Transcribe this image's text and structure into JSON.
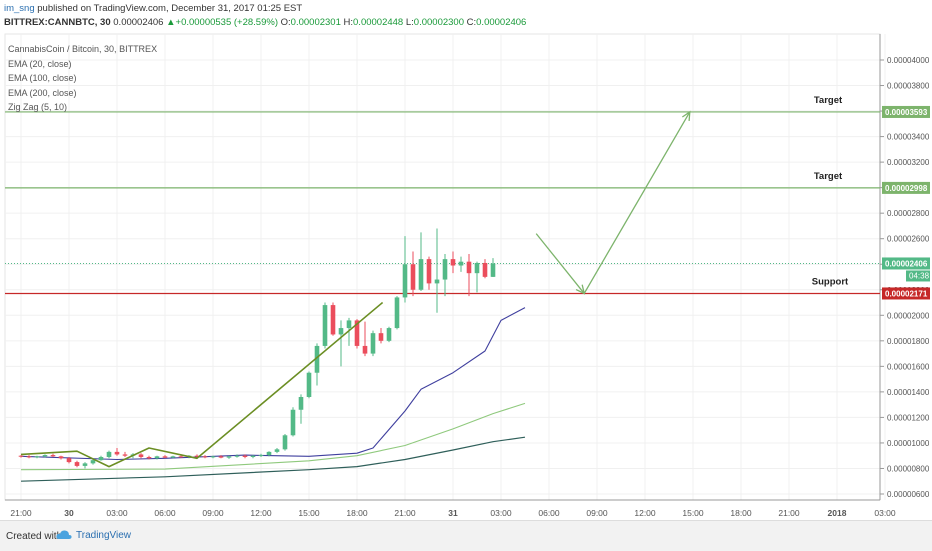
{
  "header": {
    "author": "im_sng",
    "published_text": "published on TradingView.com, December 31, 2017 01:25 EST",
    "symbol": "BITTREX:CANNBTC, 30",
    "last": "0.00002406",
    "change_arrow": "▲",
    "change": "+0.00000535 (+28.59%)",
    "o_label": "O:",
    "o": "0.00002301",
    "h_label": "H:",
    "h": "0.00002448",
    "l_label": "L:",
    "l": "0.00002300",
    "c_label": "C:",
    "c": "0.00002406"
  },
  "legend": {
    "title": "CannabisCoin / Bitcoin, 30, BITTREX",
    "ema20": "EMA (20, close)",
    "ema100": "EMA (100, close)",
    "ema200": "EMA (200, close)",
    "zigzag": "Zig Zag (5, 10)"
  },
  "footer": {
    "created_with": "Created with",
    "brand": "TradingView"
  },
  "colors": {
    "up": "#53b987",
    "down": "#eb4d5c",
    "ema20": "#3f3f9e",
    "ema100": "#8fc97d",
    "ema200": "#2f5f5a",
    "zigzag": "#6b8e23",
    "target_line": "#7db46c",
    "support_line": "#c62828",
    "arrow": "#7db46c"
  },
  "chart_data": {
    "type": "candlestick",
    "y_range": [
      5.8e-06,
      4.2e-06
    ],
    "y_ticks": [
      "0.00000600",
      "0.00000800",
      "0.00001000",
      "0.00001200",
      "0.00001400",
      "0.00001600",
      "0.00001800",
      "0.00002000",
      "0.00002200",
      "0.00002400",
      "0.00002600",
      "0.00002800",
      "0.00003000",
      "0.00003200",
      "0.00003400",
      "0.00003600",
      "0.00003800",
      "0.00004000"
    ],
    "x_ticks": [
      "21:00",
      "30",
      "03:00",
      "06:00",
      "09:00",
      "12:00",
      "15:00",
      "18:00",
      "21:00",
      "31",
      "03:00",
      "06:00",
      "09:00",
      "12:00",
      "15:00",
      "18:00",
      "21:00",
      "2018",
      "03:00"
    ],
    "x_tick_times": [
      0,
      3,
      6,
      9,
      12,
      15,
      18,
      21,
      24,
      27,
      30,
      33,
      36,
      39,
      42,
      45,
      48,
      51,
      54
    ],
    "levels": [
      {
        "label": "Target",
        "value": "0.00003593"
      },
      {
        "label": "Target",
        "value": "0.00002998"
      },
      {
        "label": "Support",
        "value": "0.00002171"
      }
    ],
    "last_price_tag": "0.00002406",
    "countdown": "04:38",
    "candles": [
      [
        9e-06,
        9.05e-06,
        8.85e-06,
        8.95e-06
      ],
      [
        8.95e-06,
        9.05e-06,
        8.8e-06,
        8.9e-06
      ],
      [
        8.9e-06,
        9e-06,
        8.8e-06,
        8.95e-06
      ],
      [
        8.95e-06,
        9.1e-06,
        8.85e-06,
        9.05e-06
      ],
      [
        9.05e-06,
        9.15e-06,
        8.9e-06,
        8.95e-06
      ],
      [
        8.95e-06,
        9e-06,
        8.7e-06,
        8.8e-06
      ],
      [
        8.8e-06,
        8.9e-06,
        8.4e-06,
        8.5e-06
      ],
      [
        8.5e-06,
        8.6e-06,
        8.1e-06,
        8.2e-06
      ],
      [
        8.2e-06,
        8.5e-06,
        8e-06,
        8.4e-06
      ],
      [
        8.4e-06,
        8.7e-06,
        8.3e-06,
        8.65e-06
      ],
      [
        8.65e-06,
        9e-06,
        8.6e-06,
        8.9e-06
      ],
      [
        8.9e-06,
        9.4e-06,
        8.8e-06,
        9.3e-06
      ],
      [
        9.3e-06,
        9.6e-06,
        9e-06,
        9.1e-06
      ],
      [
        9.1e-06,
        9.3e-06,
        8.9e-06,
        9e-06
      ],
      [
        9e-06,
        9.2e-06,
        8.8e-06,
        9.1e-06
      ],
      [
        9.1e-06,
        9.2e-06,
        8.8e-06,
        8.9e-06
      ],
      [
        8.9e-06,
        9e-06,
        8.7e-06,
        8.8e-06
      ],
      [
        8.8e-06,
        9e-06,
        8.7e-06,
        8.95e-06
      ],
      [
        8.95e-06,
        9.05e-06,
        8.8e-06,
        8.85e-06
      ],
      [
        8.85e-06,
        9e-06,
        8.8e-06,
        8.95e-06
      ],
      [
        8.95e-06,
        9.1e-06,
        8.85e-06,
        8.9e-06
      ],
      [
        8.9e-06,
        9.05e-06,
        8.8e-06,
        9e-06
      ],
      [
        9e-06,
        9.1e-06,
        8.85e-06,
        8.95e-06
      ],
      [
        8.95e-06,
        9.05e-06,
        8.8e-06,
        8.9e-06
      ],
      [
        8.9e-06,
        9e-06,
        8.8e-06,
        8.95e-06
      ],
      [
        8.95e-06,
        9.05e-06,
        8.8e-06,
        8.85e-06
      ],
      [
        8.85e-06,
        9e-06,
        8.75e-06,
        8.95e-06
      ],
      [
        8.95e-06,
        9.1e-06,
        8.85e-06,
        9e-06
      ],
      [
        9e-06,
        9.1e-06,
        8.8e-06,
        8.9e-06
      ],
      [
        8.9e-06,
        9.05e-06,
        8.8e-06,
        9e-06
      ],
      [
        9e-06,
        9.15e-06,
        8.9e-06,
        9.05e-06
      ],
      [
        9.05e-06,
        9.35e-06,
        8.95e-06,
        9.3e-06
      ],
      [
        9.3e-06,
        9.6e-06,
        9.2e-06,
        9.5e-06
      ],
      [
        9.5e-06,
        1.07e-05,
        9.4e-06,
        1.06e-05
      ],
      [
        1.06e-05,
        1.28e-05,
        1.05e-05,
        1.26e-05
      ],
      [
        1.26e-05,
        1.38e-05,
        1.15e-05,
        1.36e-05
      ],
      [
        1.36e-05,
        1.56e-05,
        1.35e-05,
        1.55e-05
      ],
      [
        1.55e-05,
        1.78e-05,
        1.45e-05,
        1.76e-05
      ],
      [
        1.76e-05,
        2.1e-05,
        1.74e-05,
        2.08e-05
      ],
      [
        2.08e-05,
        2.1e-05,
        1.84e-05,
        1.85e-05
      ],
      [
        1.85e-05,
        1.96e-05,
        1.6e-05,
        1.9e-05
      ],
      [
        1.9e-05,
        1.98e-05,
        1.76e-05,
        1.96e-05
      ],
      [
        1.96e-05,
        1.97e-05,
        1.74e-05,
        1.76e-05
      ],
      [
        1.76e-05,
        1.95e-05,
        1.68e-05,
        1.7e-05
      ],
      [
        1.7e-05,
        1.88e-05,
        1.68e-05,
        1.86e-05
      ],
      [
        1.86e-05,
        1.9e-05,
        1.78e-05,
        1.8e-05
      ],
      [
        1.8e-05,
        1.91e-05,
        1.79e-05,
        1.9e-05
      ],
      [
        1.9e-05,
        2.15e-05,
        1.89e-05,
        2.14e-05
      ],
      [
        2.14e-05,
        2.62e-05,
        2.1e-05,
        2.4e-05
      ],
      [
        2.4e-05,
        2.5e-05,
        2.15e-05,
        2.2e-05
      ],
      [
        2.2e-05,
        2.65e-05,
        2.19e-05,
        2.44e-05
      ],
      [
        2.44e-05,
        2.46e-05,
        2.2e-05,
        2.25e-05
      ],
      [
        2.25e-05,
        2.68e-05,
        2.02e-05,
        2.28e-05
      ],
      [
        2.28e-05,
        2.48e-05,
        2.15e-05,
        2.44e-05
      ],
      [
        2.44e-05,
        2.5e-05,
        2.33e-05,
        2.39e-05
      ],
      [
        2.39e-05,
        2.46e-05,
        2.34e-05,
        2.42e-05
      ],
      [
        2.42e-05,
        2.48e-05,
        2.15e-05,
        2.33e-05
      ],
      [
        2.33e-05,
        2.42e-05,
        2.18e-05,
        2.41e-05
      ],
      [
        2.41e-05,
        2.44e-05,
        2.29e-05,
        2.301e-05
      ],
      [
        2.301e-05,
        2.448e-05,
        2.3e-05,
        2.406e-05
      ]
    ],
    "ema20": [
      [
        0,
        8.95e-06
      ],
      [
        6,
        8.7e-06
      ],
      [
        9,
        8.8e-06
      ],
      [
        14,
        9.05e-06
      ],
      [
        18,
        8.95e-06
      ],
      [
        21,
        9.2e-06
      ],
      [
        22,
        9.6e-06
      ],
      [
        24,
        1.25e-05
      ],
      [
        25,
        1.42e-05
      ],
      [
        27,
        1.55e-05
      ],
      [
        29,
        1.72e-05
      ],
      [
        30,
        1.96e-05
      ],
      [
        31.5,
        2.06e-05
      ]
    ],
    "ema100": [
      [
        0,
        7.9e-06
      ],
      [
        9,
        7.95e-06
      ],
      [
        18,
        8.6e-06
      ],
      [
        21,
        9e-06
      ],
      [
        24,
        9.8e-06
      ],
      [
        27,
        1.11e-05
      ],
      [
        29.5,
        1.23e-05
      ],
      [
        31.5,
        1.31e-05
      ]
    ],
    "ema200": [
      [
        0,
        7e-06
      ],
      [
        9,
        7.35e-06
      ],
      [
        18,
        7.9e-06
      ],
      [
        21,
        8.15e-06
      ],
      [
        24,
        8.7e-06
      ],
      [
        27,
        9.45e-06
      ],
      [
        29.5,
        1.01e-05
      ],
      [
        31.5,
        1.045e-05
      ]
    ],
    "zigzag": [
      [
        0,
        9.1e-06
      ],
      [
        3.5,
        9.35e-06
      ],
      [
        5.5,
        8.15e-06
      ],
      [
        8,
        9.6e-06
      ],
      [
        11,
        8.8e-06
      ],
      [
        22.6,
        2.1e-05
      ]
    ],
    "projection": [
      [
        32.2,
        2.64e-05
      ],
      [
        35.2,
        2.171e-05
      ],
      [
        41.8,
        3.593e-05
      ]
    ]
  }
}
